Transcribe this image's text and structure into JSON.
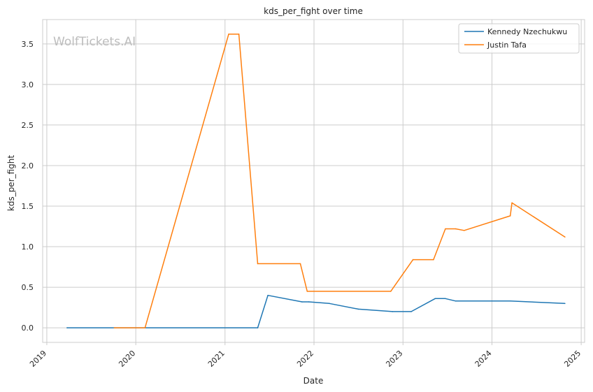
{
  "chart_data": {
    "type": "line",
    "title": "kds_per_fight over time",
    "xlabel": "Date",
    "ylabel": "kds_per_fight",
    "watermark": "WolfTickets.AI",
    "grid": true,
    "legend_position": "top-right",
    "xlim": [
      "2018-12-15",
      "2025-01-15"
    ],
    "ylim": [
      -0.18,
      3.8
    ],
    "x_ticks": [
      "2019",
      "2020",
      "2021",
      "2022",
      "2023",
      "2024",
      "2025"
    ],
    "y_ticks": [
      "0.0",
      "0.5",
      "1.0",
      "1.5",
      "2.0",
      "2.5",
      "3.0",
      "3.5"
    ],
    "series": [
      {
        "name": "Kennedy Nzechukwu",
        "color": "#1f77b4",
        "points": [
          [
            "2019-03-25",
            0.0
          ],
          [
            "2021-05-15",
            0.0
          ],
          [
            "2021-06-26",
            0.4
          ],
          [
            "2021-11-13",
            0.32
          ],
          [
            "2021-12-11",
            0.32
          ],
          [
            "2022-03-05",
            0.3
          ],
          [
            "2022-07-02",
            0.23
          ],
          [
            "2022-11-19",
            0.2
          ],
          [
            "2023-02-04",
            0.2
          ],
          [
            "2023-05-13",
            0.36
          ],
          [
            "2023-06-24",
            0.36
          ],
          [
            "2023-08-05",
            0.33
          ],
          [
            "2024-03-16",
            0.33
          ],
          [
            "2024-10-26",
            0.3
          ]
        ]
      },
      {
        "name": "Justin Tafa",
        "color": "#ff7f0e",
        "points": [
          [
            "2019-10-05",
            0.0
          ],
          [
            "2020-02-08",
            0.0
          ],
          [
            "2021-01-16",
            3.62
          ],
          [
            "2021-02-27",
            3.62
          ],
          [
            "2021-05-15",
            0.79
          ],
          [
            "2021-11-06",
            0.79
          ],
          [
            "2021-12-04",
            0.45
          ],
          [
            "2022-11-12",
            0.45
          ],
          [
            "2023-02-11",
            0.84
          ],
          [
            "2023-05-06",
            0.84
          ],
          [
            "2023-06-24",
            1.22
          ],
          [
            "2023-08-05",
            1.22
          ],
          [
            "2023-09-09",
            1.2
          ],
          [
            "2024-03-16",
            1.38
          ],
          [
            "2024-03-23",
            1.54
          ],
          [
            "2024-10-26",
            1.12
          ]
        ]
      }
    ]
  }
}
